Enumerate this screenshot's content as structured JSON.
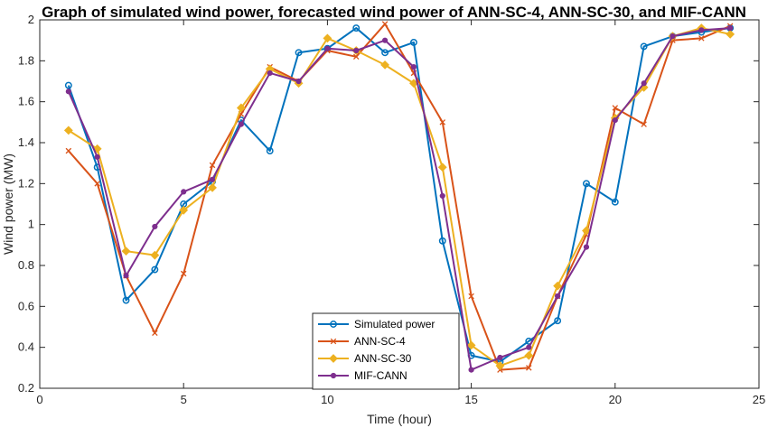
{
  "chart_data": {
    "type": "line",
    "title": "Graph of simulated wind power, forecasted wind power of ANN-SC-4, ANN-SC-30, and MIF-CANN",
    "xlabel": "Time (hour)",
    "ylabel": "Wind power (MW)",
    "xlim": [
      0,
      25
    ],
    "ylim": [
      0.2,
      2
    ],
    "xticks": [
      0,
      5,
      10,
      15,
      20,
      25
    ],
    "yticks": [
      0.2,
      0.4,
      0.6,
      0.8,
      1,
      1.2,
      1.4,
      1.6,
      1.8,
      2
    ],
    "xtick_labels": [
      "0",
      "5",
      "10",
      "15",
      "20",
      "25"
    ],
    "ytick_labels": [
      "0.2",
      "0.4",
      "0.6",
      "0.8",
      "1",
      "1.2",
      "1.4",
      "1.6",
      "1.8",
      "2"
    ],
    "legend_position": "bottom-center",
    "grid": false,
    "x": [
      1,
      2,
      3,
      4,
      5,
      6,
      7,
      8,
      9,
      10,
      11,
      12,
      13,
      14,
      15,
      16,
      17,
      18,
      19,
      20,
      21,
      22,
      23,
      24
    ],
    "series": [
      {
        "name": "Simulated power",
        "color": "#0072BD",
        "marker": "circle",
        "values": [
          1.68,
          1.28,
          0.63,
          0.78,
          1.1,
          1.21,
          1.51,
          1.36,
          1.84,
          1.86,
          1.96,
          1.84,
          1.89,
          0.92,
          0.36,
          0.33,
          0.43,
          0.53,
          1.2,
          1.11,
          1.87,
          1.92,
          1.94,
          1.96
        ]
      },
      {
        "name": "ANN-SC-4",
        "color": "#D95319",
        "marker": "x",
        "values": [
          1.36,
          1.2,
          0.75,
          0.47,
          0.76,
          1.29,
          1.54,
          1.77,
          1.7,
          1.85,
          1.82,
          1.98,
          1.74,
          1.5,
          0.65,
          0.29,
          0.3,
          0.65,
          0.95,
          1.57,
          1.49,
          1.9,
          1.91,
          1.97
        ]
      },
      {
        "name": "ANN-SC-30",
        "color": "#EDB120",
        "marker": "diamond",
        "values": [
          1.46,
          1.37,
          0.87,
          0.85,
          1.07,
          1.18,
          1.57,
          1.76,
          1.69,
          1.91,
          1.85,
          1.78,
          1.69,
          1.28,
          0.41,
          0.31,
          0.36,
          0.7,
          0.97,
          1.52,
          1.67,
          1.92,
          1.96,
          1.93
        ]
      },
      {
        "name": "MIF-CANN",
        "color": "#7E2F8E",
        "marker": "circle-filled",
        "values": [
          1.65,
          1.33,
          0.75,
          0.99,
          1.16,
          1.22,
          1.49,
          1.74,
          1.7,
          1.86,
          1.85,
          1.9,
          1.77,
          1.14,
          0.29,
          0.35,
          0.4,
          0.65,
          0.89,
          1.51,
          1.69,
          1.92,
          1.95,
          1.96
        ]
      }
    ]
  }
}
